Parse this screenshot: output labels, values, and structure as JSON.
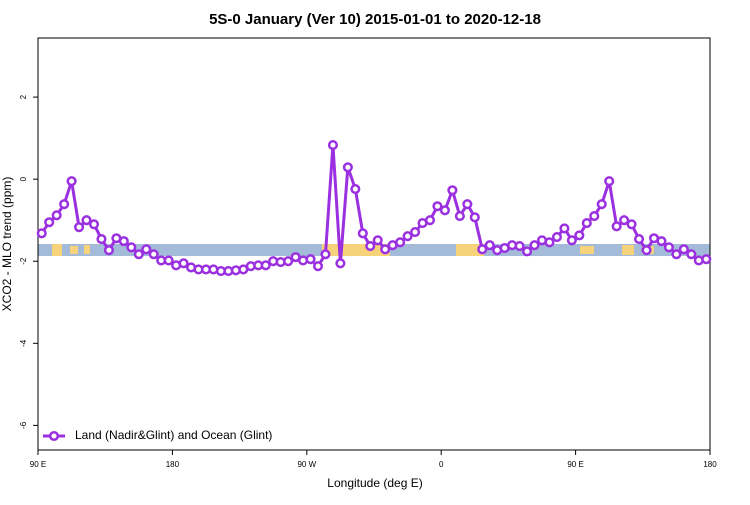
{
  "chart_data": {
    "type": "line",
    "title": "5S-0 January (Ver 10)   2015-01-01 to 2020-12-18",
    "x_label": "Longitude (deg E)",
    "y_label": "XCO2 - MLO trend (ppm)",
    "xlim": [
      90,
      540
    ],
    "ylim": [
      -6.6,
      3.44
    ],
    "xticks": [
      {
        "value": 90,
        "label": "90 E"
      },
      180,
      {
        "value": 270,
        "label": "90 W"
      },
      {
        "value": 360,
        "label": "0"
      },
      {
        "value": 450,
        "label": "90 E"
      },
      {
        "value": 540,
        "label": "180"
      }
    ],
    "yticks": [
      -6,
      -4,
      -2,
      0,
      2
    ],
    "legend": "bottomleft",
    "x": [
      92.5,
      97.5,
      102.5,
      107.5,
      112.5,
      117.5,
      122.5,
      127.5,
      132.5,
      137.5,
      142.5,
      147.5,
      152.5,
      157.5,
      162.5,
      167.5,
      172.5,
      177.5,
      182.5,
      187.5,
      192.5,
      197.5,
      202.5,
      207.5,
      212.5,
      217.5,
      222.5,
      227.5,
      232.5,
      237.5,
      242.5,
      247.5,
      252.5,
      257.5,
      262.5,
      267.5,
      272.5,
      277.5,
      282.5,
      287.5,
      292.5,
      297.5,
      302.5,
      307.5,
      312.5,
      317.5,
      322.5,
      327.5,
      332.5,
      337.5,
      342.5,
      347.5,
      352.5,
      357.5,
      362.5,
      367.5,
      372.5,
      377.5,
      382.5,
      387.5,
      392.5,
      397.5,
      402.5,
      407.5,
      412.5,
      417.5,
      422.5,
      427.5,
      432.5,
      437.5,
      442.5,
      447.5,
      452.5,
      457.5,
      462.5,
      467.5,
      472.5,
      477.5,
      482.5,
      487.5,
      492.5,
      497.5,
      502.5,
      507.5,
      512.5,
      517.5,
      522.5,
      527.5,
      532.5,
      537.5
    ],
    "series": [
      {
        "name": "Land (Nadir&Glint) and Ocean (Glint)",
        "color": "#9b30e0",
        "values": [
          -1.32,
          -1.05,
          -0.88,
          -0.61,
          -0.05,
          -1.17,
          -1.0,
          -1.1,
          -1.46,
          -1.73,
          -1.44,
          -1.51,
          -1.66,
          -1.83,
          -1.71,
          -1.83,
          -1.98,
          -1.98,
          -2.1,
          -2.05,
          -2.15,
          -2.2,
          -2.2,
          -2.2,
          -2.24,
          -2.24,
          -2.22,
          -2.2,
          -2.12,
          -2.1,
          -2.1,
          -2.0,
          -2.02,
          -2.0,
          -1.9,
          -1.98,
          -1.95,
          -2.12,
          -1.83,
          0.83,
          -2.05,
          0.29,
          -0.24,
          -1.32,
          -1.63,
          -1.49,
          -1.71,
          -1.61,
          -1.54,
          -1.39,
          -1.29,
          -1.07,
          -1.0,
          -0.66,
          -0.76,
          -0.27,
          -0.9,
          -0.61,
          -0.93,
          -1.71,
          -1.61,
          -1.73,
          -1.68,
          -1.61,
          -1.63,
          -1.76,
          -1.61,
          -1.49,
          -1.54,
          -1.41,
          -1.2,
          -1.49,
          -1.37,
          -1.07,
          -0.9,
          -0.61,
          -0.05,
          -1.15,
          -1.0,
          -1.1,
          -1.46,
          -1.73,
          -1.44,
          -1.51,
          -1.66,
          -1.83,
          -1.71,
          -1.83,
          -1.98,
          -1.95
        ]
      }
    ]
  }
}
